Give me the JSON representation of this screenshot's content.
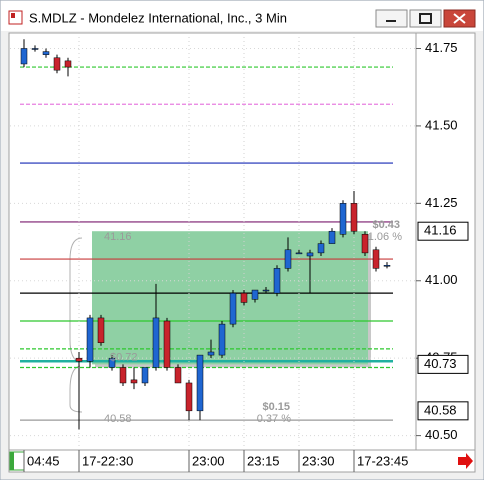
{
  "window_title": "S.MDLZ - Mondelez International, Inc., 3 Min",
  "chart_data": {
    "type": "candlestick",
    "categories": [
      "04:45",
      null,
      null,
      null,
      null,
      "17-22:30",
      null,
      null,
      null,
      null,
      null,
      null,
      null,
      null,
      null,
      "23:00",
      null,
      null,
      null,
      null,
      "23:15",
      null,
      null,
      null,
      null,
      "23:30",
      null,
      null,
      null,
      null,
      "17-23:45",
      null,
      null,
      null
    ],
    "open": [
      41.7,
      41.75,
      41.73,
      41.72,
      41.71,
      40.75,
      40.74,
      40.88,
      40.72,
      40.72,
      40.68,
      40.67,
      40.72,
      40.87,
      40.72,
      40.67,
      40.58,
      40.76,
      40.76,
      40.86,
      40.96,
      40.94,
      40.97,
      40.96,
      41.04,
      41.09,
      41.08,
      41.09,
      41.12,
      41.15,
      41.25,
      41.15,
      41.1,
      41.05
    ],
    "high": [
      41.78,
      41.76,
      41.75,
      41.73,
      41.72,
      40.77,
      40.89,
      40.89,
      40.76,
      40.73,
      40.72,
      40.72,
      40.99,
      40.88,
      40.73,
      40.68,
      40.76,
      40.81,
      40.87,
      40.97,
      40.97,
      40.97,
      40.98,
      41.05,
      41.14,
      41.1,
      41.1,
      41.13,
      41.17,
      41.26,
      41.29,
      41.16,
      41.11,
      41.06
    ],
    "low": [
      41.69,
      41.74,
      41.72,
      41.67,
      41.66,
      40.52,
      40.72,
      40.79,
      40.71,
      40.66,
      40.65,
      40.66,
      40.71,
      40.71,
      40.67,
      40.55,
      40.55,
      40.75,
      40.75,
      40.85,
      40.92,
      40.93,
      40.96,
      40.95,
      41.03,
      41.09,
      40.96,
      41.08,
      41.12,
      41.14,
      41.15,
      41.08,
      41.03,
      41.04
    ],
    "close": [
      41.75,
      41.75,
      41.74,
      41.68,
      41.69,
      40.74,
      40.88,
      40.8,
      40.75,
      40.67,
      40.67,
      40.72,
      40.88,
      40.72,
      40.67,
      40.58,
      40.76,
      40.77,
      40.86,
      40.96,
      40.93,
      40.97,
      40.97,
      41.04,
      41.1,
      41.09,
      41.09,
      41.12,
      41.16,
      41.25,
      41.16,
      41.09,
      41.04,
      41.05
    ],
    "up_color": "#1f66d1",
    "down_color": "#c8232c",
    "ylim": [
      40.46,
      41.8
    ],
    "yticks": [
      {
        "value": 40.5,
        "label": "40.50"
      },
      {
        "value": 40.75,
        "label": "40.75"
      },
      {
        "value": 41.0,
        "label": "41.00"
      },
      {
        "value": 41.25,
        "label": "41.25"
      },
      {
        "value": 41.5,
        "label": "41.50"
      },
      {
        "value": 41.75,
        "label": "41.75"
      }
    ],
    "grid": true,
    "levels": [
      {
        "value": 41.69,
        "color": "#2ec82e",
        "dash": true
      },
      {
        "value": 41.57,
        "color": "#e87ee0",
        "dash": true
      },
      {
        "value": 41.38,
        "color": "#1428b4",
        "dash": false
      },
      {
        "value": 41.19,
        "color": "#7a1a6e",
        "dash": false
      },
      {
        "value": 41.07,
        "color": "#c83a3a",
        "dash": false
      },
      {
        "value": 40.96,
        "color": "#000000",
        "dash": false
      },
      {
        "value": 40.87,
        "color": "#2ec82e",
        "dash": false
      },
      {
        "value": 40.78,
        "color": "#2ec82e",
        "dash": true
      },
      {
        "value": 40.74,
        "color": "#20b0a0",
        "dash": false
      },
      {
        "value": 40.72,
        "color": "#2ec82e",
        "dash": true
      },
      {
        "value": 40.55,
        "color": "#9a9a9a",
        "dash": false
      }
    ],
    "price_tags": [
      41.16,
      40.73,
      40.58
    ],
    "annotations": [
      "41.16",
      "$0.43",
      "1.06 %",
      "$0.72",
      "40.58",
      "$0.15",
      "0.37 %"
    ]
  }
}
